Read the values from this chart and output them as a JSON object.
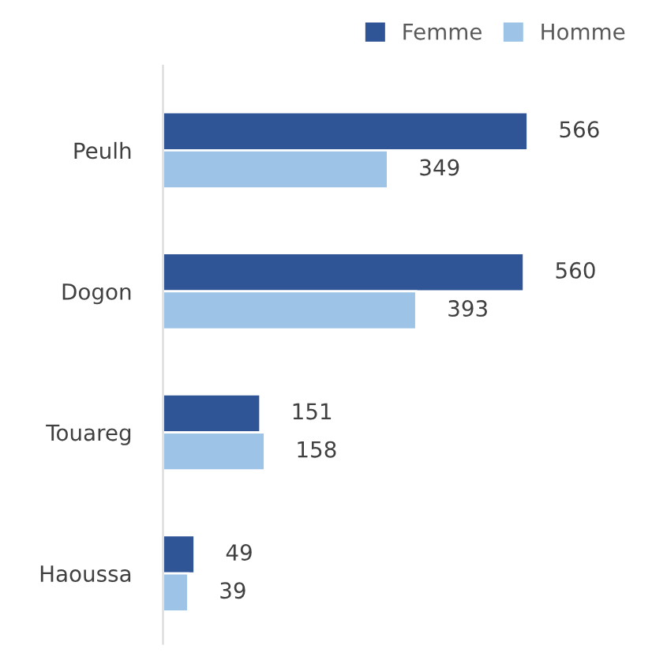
{
  "chart_data": {
    "type": "bar",
    "orientation": "horizontal",
    "categories": [
      "Peulh",
      "Dogon",
      "Touareg",
      "Haoussa"
    ],
    "series": [
      {
        "name": "Femme",
        "color": "#2f5597",
        "values": [
          566,
          560,
          151,
          49
        ]
      },
      {
        "name": "Homme",
        "color": "#9dc3e6",
        "values": [
          349,
          393,
          158,
          39
        ]
      }
    ],
    "data_labels": true,
    "legend": "top right",
    "grid": false
  }
}
